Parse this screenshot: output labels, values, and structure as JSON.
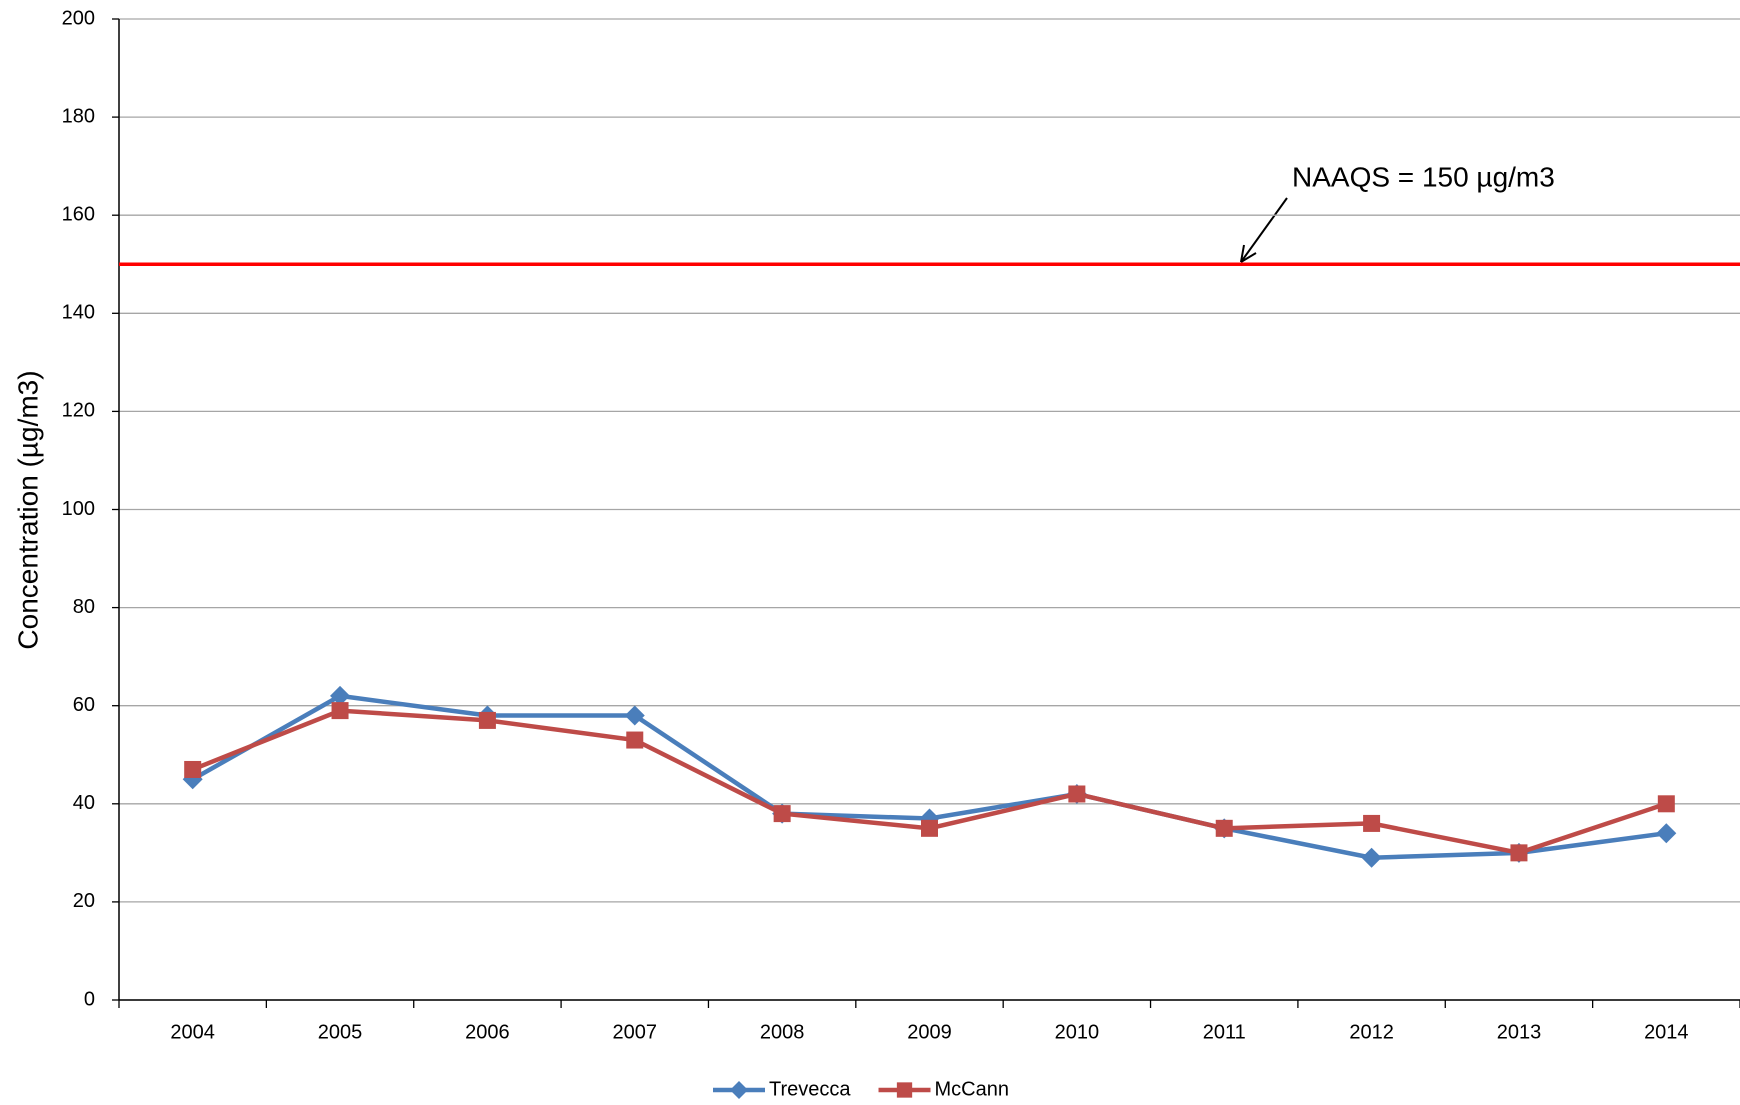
{
  "chart_data": {
    "type": "line",
    "y_label": "Concentration (µg/m3)",
    "categories": [
      "2004",
      "2005",
      "2006",
      "2007",
      "2008",
      "2009",
      "2010",
      "2011",
      "2012",
      "2013",
      "2014"
    ],
    "series": [
      {
        "name": "Trevecca",
        "color": "#4a7ebb",
        "marker": "diamond",
        "values": [
          45,
          62,
          58,
          58,
          38,
          37,
          42,
          35,
          29,
          30,
          34
        ]
      },
      {
        "name": "McCann",
        "color": "#be4b48",
        "marker": "square",
        "values": [
          47,
          59,
          57,
          53,
          38,
          35,
          42,
          35,
          36,
          30,
          40
        ]
      }
    ],
    "ylim": [
      0,
      200
    ],
    "yticks": [
      0,
      20,
      40,
      60,
      80,
      100,
      120,
      140,
      160,
      180,
      200
    ],
    "grid": true,
    "reference_line": {
      "value": 150,
      "color": "#ff0000"
    },
    "annotation": "NAAQS = 150 µg/m3",
    "legend": "bottom"
  }
}
